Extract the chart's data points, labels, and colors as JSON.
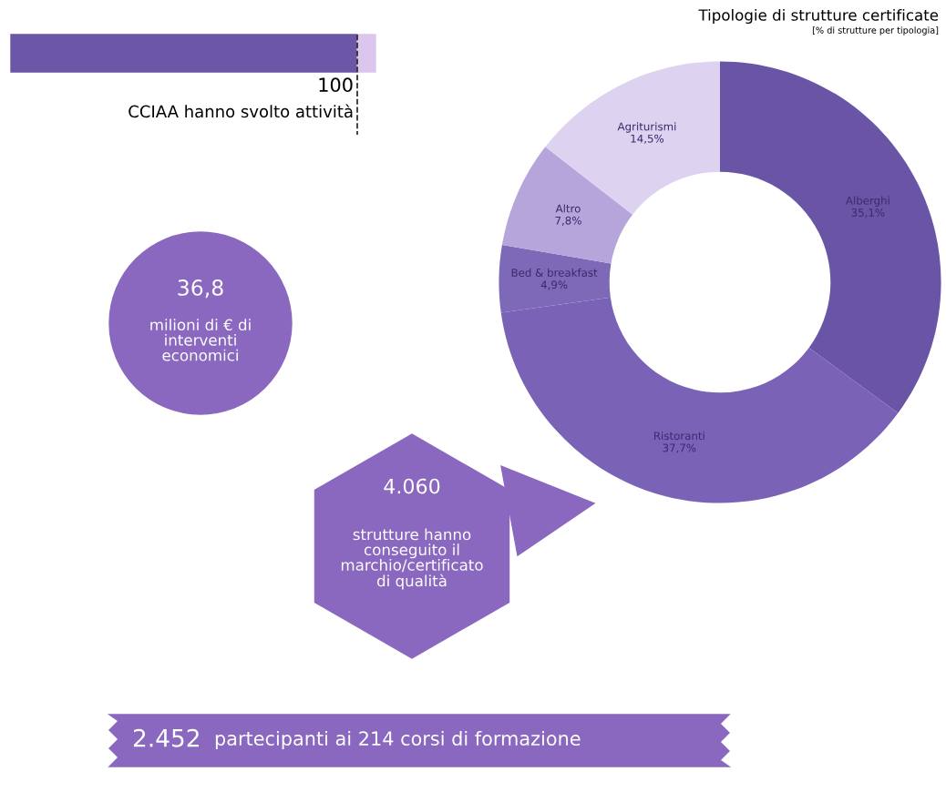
{
  "chart_data": [
    {
      "type": "donut",
      "title": "Tipologie di strutture certificate",
      "subtitle": "[% di strutture per tipologia]",
      "categories": [
        "Alberghi",
        "Ristoranti",
        "Bed & breakfast",
        "Altro",
        "Agriturismi"
      ],
      "values": [
        35.1,
        37.7,
        4.9,
        7.8,
        14.5
      ],
      "colors": [
        "#6a54a6",
        "#7a63b6",
        "#7e69b9",
        "#b6a5da",
        "#ddd2ef"
      ],
      "value_labels": [
        "35,1%",
        "37,7%",
        "4,9%",
        "7,8%",
        "14,5%"
      ]
    },
    {
      "type": "other",
      "annotations": [
        "100",
        "CCIAA hanno svolto attività",
        "36,8",
        "milioni di € di\ninterventi\neconomici",
        "4.060",
        "strutture hanno\nconseguito il\nmarchio/certificato\ndi qualità",
        "2.452",
        "partecipanti ai 214 corsi di formazione"
      ]
    }
  ]
}
